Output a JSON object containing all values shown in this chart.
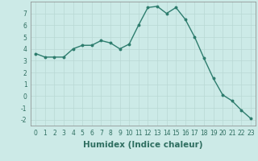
{
  "x": [
    0,
    1,
    2,
    3,
    4,
    5,
    6,
    7,
    8,
    9,
    10,
    11,
    12,
    13,
    14,
    15,
    16,
    17,
    18,
    19,
    20,
    21,
    22,
    23
  ],
  "y": [
    3.6,
    3.3,
    3.3,
    3.3,
    4.0,
    4.3,
    4.3,
    4.7,
    4.5,
    4.0,
    4.4,
    6.0,
    7.5,
    7.6,
    7.0,
    7.5,
    6.5,
    5.0,
    3.2,
    1.5,
    0.1,
    -0.4,
    -1.2,
    -1.9
  ],
  "line_color": "#2e7d6e",
  "marker": "o",
  "marker_size": 1.8,
  "linewidth": 1.0,
  "xlabel": "Humidex (Indice chaleur)",
  "ylim": [
    -2.5,
    8.0
  ],
  "xlim": [
    -0.5,
    23.5
  ],
  "yticks": [
    -2,
    -1,
    0,
    1,
    2,
    3,
    4,
    5,
    6,
    7
  ],
  "xticks": [
    0,
    1,
    2,
    3,
    4,
    5,
    6,
    7,
    8,
    9,
    10,
    11,
    12,
    13,
    14,
    15,
    16,
    17,
    18,
    19,
    20,
    21,
    22,
    23
  ],
  "xtick_labels": [
    "0",
    "1",
    "2",
    "3",
    "4",
    "5",
    "6",
    "7",
    "8",
    "9",
    "10",
    "11",
    "12",
    "13",
    "14",
    "15",
    "16",
    "17",
    "18",
    "19",
    "20",
    "21",
    "22",
    "23"
  ],
  "bg_color": "#cceae7",
  "grid_color": "#b8d8d4",
  "tick_fontsize": 5.5,
  "xlabel_fontsize": 7.5
}
